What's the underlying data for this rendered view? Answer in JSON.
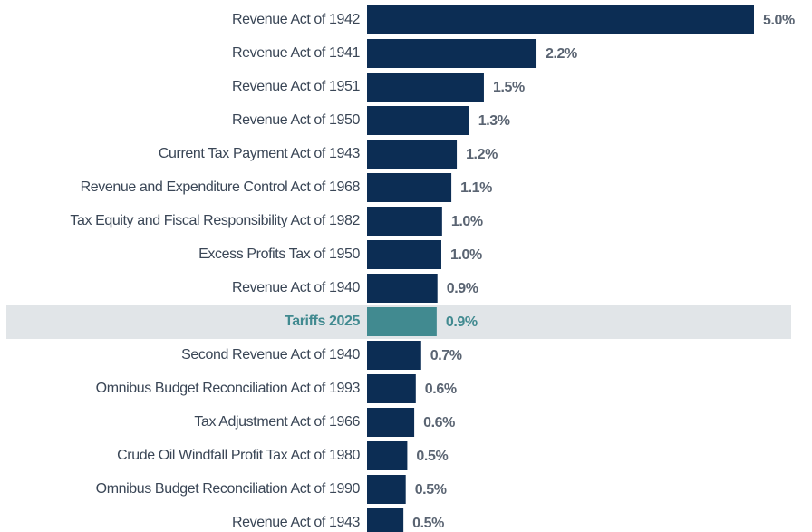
{
  "chart_data": {
    "type": "barh",
    "categories": [
      "Revenue Act of 1942",
      "Revenue Act of 1941",
      "Revenue Act of 1951",
      "Revenue Act of 1950",
      "Current Tax Payment Act of 1943",
      "Revenue and Expenditure Control Act of 1968",
      "Tax Equity and Fiscal Responsibility Act of 1982",
      "Excess Profits Tax of 1950",
      "Revenue Act of 1940",
      "Tariffs 2025",
      "Second Revenue Act of 1940",
      "Omnibus Budget Reconciliation Act of 1993",
      "Tax Adjustment Act of 1966",
      "Crude Oil Windfall Profit Tax Act of 1980",
      "Omnibus Budget Reconciliation Act of 1990",
      "Revenue Act of 1943"
    ],
    "values": [
      5.0,
      2.19,
      1.51,
      1.32,
      1.16,
      1.09,
      0.97,
      0.96,
      0.91,
      0.9,
      0.7,
      0.63,
      0.61,
      0.52,
      0.5,
      0.47
    ],
    "value_labels": [
      "5.0%",
      "2.2%",
      "1.5%",
      "1.3%",
      "1.2%",
      "1.1%",
      "1.0%",
      "1.0%",
      "0.9%",
      "0.9%",
      "0.7%",
      "0.6%",
      "0.6%",
      "0.5%",
      "0.5%",
      "0.5%"
    ],
    "color": "#0c2d54",
    "highlight_index": 9,
    "highlight_color": "#418a90"
  }
}
